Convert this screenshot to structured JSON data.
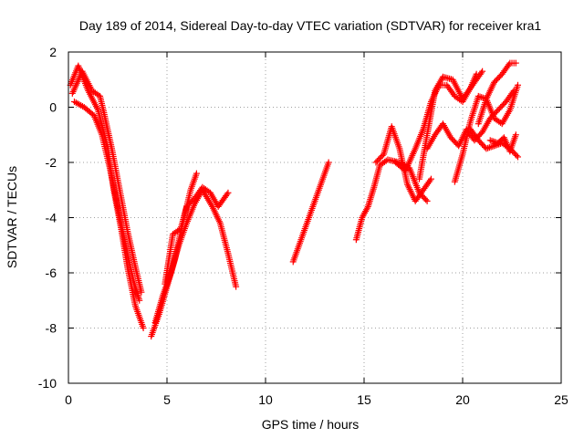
{
  "chart_data": {
    "type": "scatter",
    "title": "Day 189 of 2014, Sidereal Day-to-day VTEC variation (SDTVAR) for receiver kra1",
    "xlabel": "GPS time / hours",
    "ylabel": "SDTVAR / TECUs",
    "xlim": [
      0,
      25
    ],
    "ylim": [
      -10,
      2
    ],
    "xticks": [
      "0",
      "5",
      "10",
      "15",
      "20",
      "25"
    ],
    "yticks": [
      "-10",
      "-8",
      "-6",
      "-4",
      "-2",
      "0",
      "2"
    ],
    "grid": true,
    "legend": "none",
    "marker": "plus",
    "series_color": "#ff0000",
    "tracks": [
      {
        "x": [
          0.1,
          0.5,
          1.0,
          1.5,
          2.0,
          2.3,
          2.7,
          3.0,
          3.4,
          3.8
        ],
        "y": [
          0.8,
          1.5,
          0.6,
          -0.1,
          -1.5,
          -3.0,
          -4.5,
          -5.8,
          -7.2,
          -8.0
        ]
      },
      {
        "x": [
          0.2,
          0.7,
          1.2,
          1.6,
          1.8,
          2.2,
          2.6,
          3.0,
          3.4,
          3.7
        ],
        "y": [
          0.5,
          1.3,
          0.6,
          0.4,
          -0.2,
          -1.5,
          -3.0,
          -4.5,
          -5.8,
          -6.7
        ]
      },
      {
        "x": [
          0.3,
          0.8,
          1.3,
          1.7,
          2.1,
          2.5,
          2.9,
          3.3,
          3.6
        ],
        "y": [
          0.2,
          0.0,
          -0.3,
          -1.0,
          -2.2,
          -3.6,
          -5.0,
          -6.3,
          -7.0
        ]
      },
      {
        "x": [
          4.2,
          4.6,
          5.0,
          5.4,
          5.8,
          6.2,
          6.5
        ],
        "y": [
          -8.3,
          -7.5,
          -6.5,
          -5.5,
          -4.2,
          -3.0,
          -2.4
        ]
      },
      {
        "x": [
          4.4,
          4.8,
          5.2,
          5.6,
          6.0,
          6.4,
          6.8,
          7.3,
          7.7,
          8.1,
          8.5
        ],
        "y": [
          -7.8,
          -6.8,
          -6.0,
          -5.0,
          -4.2,
          -3.5,
          -3.0,
          -3.6,
          -4.2,
          -5.3,
          -6.5
        ]
      },
      {
        "x": [
          4.9,
          5.3,
          5.7,
          6.0,
          6.4,
          6.8,
          7.2,
          7.6,
          8.1
        ],
        "y": [
          -6.4,
          -4.6,
          -4.4,
          -3.6,
          -3.3,
          -2.9,
          -3.1,
          -3.6,
          -3.1
        ]
      },
      {
        "x": [
          11.4,
          11.8,
          12.2,
          12.6,
          13.0,
          13.2
        ],
        "y": [
          -5.6,
          -4.8,
          -4.0,
          -3.2,
          -2.4,
          -2.0
        ]
      },
      {
        "x": [
          14.6,
          14.9,
          15.2,
          15.5,
          15.8,
          16.2,
          16.8,
          17.3,
          17.8,
          18.2
        ],
        "y": [
          -4.8,
          -4.0,
          -3.6,
          -2.9,
          -2.1,
          -1.9,
          -2.0,
          -2.2,
          -3.1,
          -3.4
        ]
      },
      {
        "x": [
          15.6,
          16.0,
          16.4,
          16.8,
          17.2,
          17.6,
          18.0,
          18.4
        ],
        "y": [
          -2.0,
          -1.7,
          -0.7,
          -1.5,
          -2.8,
          -3.4,
          -3.0,
          -2.6
        ]
      },
      {
        "x": [
          16.6,
          17.1,
          17.6,
          18.0,
          18.4,
          18.8,
          19.2,
          19.6,
          20.0,
          20.4,
          20.7
        ],
        "y": [
          -2.0,
          -2.3,
          -1.5,
          -0.8,
          0.2,
          0.8,
          0.8,
          0.4,
          0.2,
          0.7,
          1.2
        ]
      },
      {
        "x": [
          17.8,
          18.3,
          18.6,
          19.0,
          19.5,
          20.0,
          20.5,
          21.0
        ],
        "y": [
          -2.6,
          -0.6,
          0.6,
          1.1,
          1.0,
          0.3,
          0.8,
          1.3
        ]
      },
      {
        "x": [
          18.2,
          18.6,
          19.0,
          19.4,
          19.8,
          20.2,
          20.6,
          21.0,
          21.4,
          21.8,
          22.2,
          22.6
        ],
        "y": [
          -1.5,
          -1.0,
          -0.6,
          -1.1,
          -1.4,
          -0.8,
          -1.2,
          -0.9,
          -0.4,
          -0.1,
          0.2,
          0.6
        ]
      },
      {
        "x": [
          19.6,
          20.0,
          20.4,
          20.8,
          21.2,
          21.6,
          22.0,
          22.4,
          22.8
        ],
        "y": [
          -2.7,
          -1.7,
          -0.5,
          0.4,
          0.3,
          -0.4,
          -0.6,
          -0.1,
          0.8
        ]
      },
      {
        "x": [
          20.8,
          21.2,
          21.6,
          22.0,
          22.4,
          22.7
        ],
        "y": [
          -0.6,
          0.3,
          0.9,
          1.2,
          1.6,
          1.6
        ]
      },
      {
        "x": [
          20.4,
          20.8,
          21.2,
          21.6,
          22.0,
          22.4,
          22.8
        ],
        "y": [
          -0.8,
          -1.2,
          -1.5,
          -1.4,
          -1.3,
          -1.5,
          -1.8
        ]
      },
      {
        "x": [
          21.4,
          21.8,
          22.1,
          22.4,
          22.7
        ],
        "y": [
          -1.2,
          -1.3,
          -1.1,
          -1.6,
          -1.0
        ]
      }
    ]
  }
}
